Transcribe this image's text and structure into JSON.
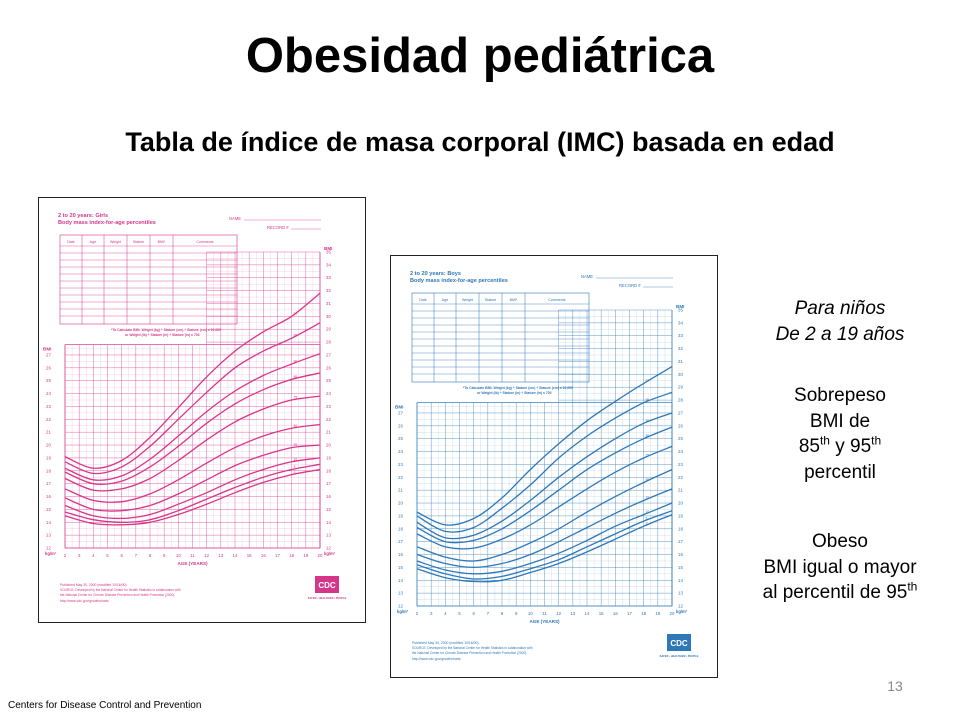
{
  "slide": {
    "title": "Obesidad pediátrica",
    "subtitle": "Tabla de índice de masa corporal (IMC) basada en edad",
    "page_number": "13",
    "source_note": "Centers for Disease Control and Prevention"
  },
  "sidebar": {
    "intro_line1": "Para niños",
    "intro_line2": "De 2 a 19 años",
    "overweight_line1": "Sobrepeso",
    "overweight_line2": "BMI de",
    "overweight_p1_num": "85",
    "overweight_p1_sup": "th",
    "overweight_join": " y ",
    "overweight_p2_num": "95",
    "overweight_p2_sup": "th",
    "overweight_line4": "percentil",
    "obese_line1": "Obeso",
    "obese_line2": "BMI igual o mayor",
    "obese_line3_text": "al percentil de 95",
    "obese_line3_sup": "th"
  },
  "charts": [
    {
      "id": "girls",
      "color": "#d6368a",
      "heading1": "2 to 20 years: Girls",
      "heading2": "Body mass index-for-age percentiles",
      "name_label": "NAME",
      "record_label": "RECORD #",
      "table_headers": [
        "Date",
        "Age",
        "Weight",
        "Stature",
        "BMI*",
        "Comments"
      ],
      "calc_note_1": "*To Calculate BMI: Weight (kg) ÷ Stature (cm) ÷ Stature (cm) x 10,000",
      "calc_note_2": "or Weight (lb) ÷ Stature (in) ÷ Stature (in) x 703",
      "axis_label_left": "BMI",
      "axis_label_right": "BMI",
      "unit_left": "kg/m²",
      "unit_right": "kg/m²",
      "xlabel": "AGE (YEARS)",
      "footer": "Published May 30, 2000 (modified 10/16/00).",
      "footer_source_1": "SOURCE: Developed by the National Center for Health Statistics in collaboration with",
      "footer_source_2": "the National Center for Chronic Disease Prevention and Health Promotion (2000).",
      "footer_url": "http://www.cdc.gov/growthcharts",
      "logo": "CDC",
      "logo_tagline": "SAFER • HEALTHIER • PEOPLE",
      "chart_data": {
        "type": "line",
        "xlabel": "AGE (YEARS)",
        "ylabel": "BMI",
        "xlim": [
          2,
          20
        ],
        "ylim": [
          12,
          35
        ],
        "x_ticks": [
          "2",
          "3",
          "4",
          "5",
          "6",
          "7",
          "8",
          "9",
          "10",
          "11",
          "12",
          "13",
          "14",
          "15",
          "16",
          "17",
          "18",
          "19",
          "20"
        ],
        "y_ticks_right": [
          "12",
          "13",
          "14",
          "15",
          "16",
          "17",
          "18",
          "19",
          "20",
          "21",
          "22",
          "23",
          "24",
          "25",
          "26",
          "27",
          "28",
          "29",
          "30",
          "31",
          "32",
          "33",
          "34",
          "35"
        ],
        "y_ticks_left_curves": [
          "12",
          "13",
          "14",
          "15",
          "16",
          "17",
          "18",
          "19",
          "20",
          "21",
          "22",
          "23",
          "24",
          "25",
          "26",
          "27"
        ],
        "x": [
          2,
          4,
          6,
          8,
          10,
          12,
          14,
          16,
          18,
          20
        ],
        "series": [
          {
            "name": "97",
            "values": [
              19.1,
              18.2,
              18.8,
              20.6,
              22.9,
              25.3,
              27.3,
              28.8,
              30.0,
              31.8
            ]
          },
          {
            "name": "95",
            "values": [
              18.7,
              17.8,
              18.3,
              19.9,
              22.0,
              24.1,
              26.0,
              27.3,
              28.3,
              29.5
            ]
          },
          {
            "name": "90",
            "values": [
              18.2,
              17.3,
              17.6,
              18.9,
              20.7,
              22.6,
              24.2,
              25.4,
              26.3,
              27.1
            ]
          },
          {
            "name": "85",
            "values": [
              17.9,
              17.0,
              17.2,
              18.3,
              19.9,
              21.7,
              23.2,
              24.3,
              25.1,
              25.6
            ]
          },
          {
            "name": "75",
            "values": [
              17.4,
              16.5,
              16.6,
              17.4,
              18.8,
              20.4,
              21.8,
              22.8,
              23.5,
              23.8
            ]
          },
          {
            "name": "50",
            "values": [
              16.6,
              15.7,
              15.6,
              16.2,
              17.3,
              18.6,
              19.8,
              20.7,
              21.3,
              21.6
            ]
          },
          {
            "name": "25",
            "values": [
              15.9,
              15.0,
              14.9,
              15.3,
              16.2,
              17.3,
              18.4,
              19.2,
              19.8,
              20.0
            ]
          },
          {
            "name": "10",
            "values": [
              15.3,
              14.5,
              14.3,
              14.6,
              15.4,
              16.3,
              17.3,
              18.1,
              18.7,
              19.0
            ]
          },
          {
            "name": "5",
            "values": [
              14.8,
              14.2,
              14.0,
              14.2,
              14.9,
              15.8,
              16.7,
              17.5,
              18.1,
              18.5
            ]
          },
          {
            "name": "3",
            "values": [
              14.5,
              13.9,
              13.8,
              14.0,
              14.6,
              15.4,
              16.3,
              17.1,
              17.7,
              18.1
            ]
          }
        ]
      }
    },
    {
      "id": "boys",
      "color": "#2e78b8",
      "heading1": "2 to 20 years: Boys",
      "heading2": "Body mass index-for-age percentiles",
      "name_label": "NAME",
      "record_label": "RECORD #",
      "table_headers": [
        "Date",
        "Age",
        "Weight",
        "Stature",
        "BMI*",
        "Comments"
      ],
      "calc_note_1": "*To Calculate BMI: Weight (kg) ÷ Stature (cm) ÷ Stature (cm) x 10,000",
      "calc_note_2": "or Weight (lb) ÷ Stature (in) ÷ Stature (in) x 703",
      "axis_label_left": "BMI",
      "axis_label_right": "BMI",
      "unit_left": "kg/m²",
      "unit_right": "kg/m²",
      "xlabel": "AGE (YEARS)",
      "footer": "Published May 30, 2000 (modified 10/16/00).",
      "footer_source_1": "SOURCE: Developed by the National Center for Health Statistics in collaboration with",
      "footer_source_2": "the National Center for Chronic Disease Prevention and Health Promotion (2000).",
      "footer_url": "http://www.cdc.gov/growthcharts",
      "logo": "CDC",
      "logo_tagline": "SAFER • HEALTHIER • PEOPLE",
      "chart_data": {
        "type": "line",
        "xlabel": "AGE (YEARS)",
        "ylabel": "BMI",
        "xlim": [
          2,
          20
        ],
        "ylim": [
          12,
          35
        ],
        "x_ticks": [
          "2",
          "3",
          "4",
          "5",
          "6",
          "7",
          "8",
          "9",
          "10",
          "11",
          "12",
          "13",
          "14",
          "15",
          "16",
          "17",
          "18",
          "19",
          "20"
        ],
        "y_ticks_right": [
          "12",
          "13",
          "14",
          "15",
          "16",
          "17",
          "18",
          "19",
          "20",
          "21",
          "22",
          "23",
          "24",
          "25",
          "26",
          "27",
          "28",
          "29",
          "30",
          "31",
          "32",
          "33",
          "34",
          "35"
        ],
        "y_ticks_left_curves": [
          "12",
          "13",
          "14",
          "15",
          "16",
          "17",
          "18",
          "19",
          "20",
          "21",
          "22",
          "23",
          "24",
          "25",
          "26",
          "27"
        ],
        "x": [
          2,
          4,
          6,
          8,
          10,
          12,
          14,
          16,
          18,
          20
        ],
        "series": [
          {
            "name": "97",
            "values": [
              19.3,
              18.3,
              18.8,
              20.4,
              22.6,
              24.6,
              26.4,
              27.9,
              29.3,
              30.6
            ]
          },
          {
            "name": "95",
            "values": [
              19.0,
              17.8,
              18.1,
              19.6,
              21.4,
              23.5,
              25.2,
              26.6,
              27.8,
              28.6
            ]
          },
          {
            "name": "90",
            "values": [
              18.5,
              17.3,
              17.5,
              18.6,
              20.2,
              22.0,
              23.6,
              25.0,
              26.2,
              27.0
            ]
          },
          {
            "name": "85",
            "values": [
              18.1,
              17.0,
              17.1,
              18.0,
              19.4,
              21.0,
              22.6,
              23.9,
              25.0,
              25.9
            ]
          },
          {
            "name": "75",
            "values": [
              17.6,
              16.6,
              16.5,
              17.2,
              18.3,
              19.7,
              21.1,
              22.4,
              23.5,
              24.4
            ]
          },
          {
            "name": "50",
            "values": [
              16.6,
              15.8,
              15.5,
              16.0,
              16.9,
              18.0,
              19.3,
              20.5,
              21.6,
              22.6
            ]
          },
          {
            "name": "25",
            "values": [
              16.0,
              15.3,
              15.0,
              15.3,
              16.0,
              17.0,
              18.1,
              19.2,
              20.2,
              21.1
            ]
          },
          {
            "name": "10",
            "values": [
              15.5,
              14.8,
              14.5,
              14.7,
              15.3,
              16.1,
              17.1,
              18.2,
              19.1,
              20.0
            ]
          },
          {
            "name": "5",
            "values": [
              15.2,
              14.5,
              14.1,
              14.3,
              14.9,
              15.6,
              16.6,
              17.6,
              18.6,
              19.4
            ]
          },
          {
            "name": "3",
            "values": [
              14.9,
              14.2,
              13.9,
              14.0,
              14.6,
              15.3,
              16.2,
              17.2,
              18.2,
              19.1
            ]
          }
        ]
      }
    }
  ]
}
